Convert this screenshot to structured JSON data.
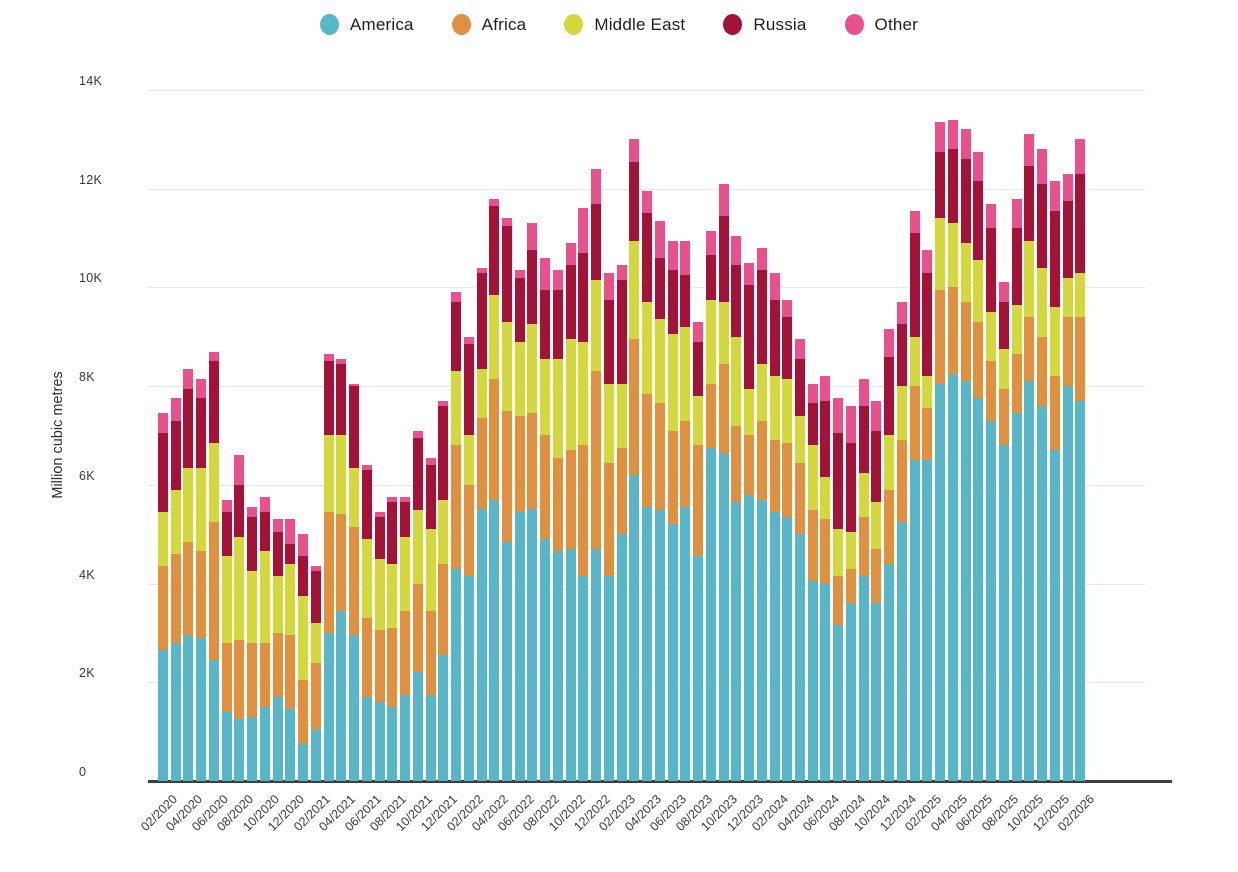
{
  "legend": [
    {
      "label": "America",
      "color": "#57b7c9"
    },
    {
      "label": "Africa",
      "color": "#e0913f"
    },
    {
      "label": "Middle East",
      "color": "#d3d93c"
    },
    {
      "label": "Russia",
      "color": "#a41238"
    },
    {
      "label": "Other",
      "color": "#e9518d"
    }
  ],
  "y_axis": {
    "title": "Million cubic metres",
    "ticks": [
      "0",
      "2K",
      "4K",
      "6K",
      "8K",
      "10K",
      "12K",
      "14K"
    ]
  },
  "chart_data": {
    "type": "bar",
    "stacked": true,
    "title": "",
    "xlabel": "",
    "ylabel": "Million cubic metres",
    "ylim": [
      0,
      14000
    ],
    "grid": true,
    "legend_position": "top",
    "categories": [
      "02/2020",
      "03/2020",
      "04/2020",
      "05/2020",
      "06/2020",
      "07/2020",
      "08/2020",
      "09/2020",
      "10/2020",
      "11/2020",
      "12/2020",
      "01/2021",
      "02/2021",
      "03/2021",
      "04/2021",
      "05/2021",
      "06/2021",
      "07/2021",
      "08/2021",
      "09/2021",
      "10/2021",
      "11/2021",
      "12/2021",
      "01/2022",
      "02/2022",
      "03/2022",
      "04/2022",
      "05/2022",
      "06/2022",
      "07/2022",
      "08/2022",
      "09/2022",
      "10/2022",
      "11/2022",
      "12/2022",
      "01/2023",
      "02/2023",
      "03/2023",
      "04/2023",
      "05/2023",
      "06/2023",
      "07/2023",
      "08/2023",
      "09/2023",
      "10/2023",
      "11/2023",
      "12/2023",
      "01/2024",
      "02/2024",
      "03/2024",
      "04/2024",
      "05/2024",
      "06/2024",
      "07/2024",
      "08/2024",
      "09/2024",
      "10/2024",
      "11/2024",
      "12/2024",
      "01/2025",
      "02/2025",
      "03/2025",
      "04/2025",
      "05/2025",
      "06/2025",
      "07/2025",
      "08/2025",
      "09/2025",
      "10/2025",
      "11/2025",
      "12/2025",
      "01/2026",
      "02/2026"
    ],
    "tick_every": 2,
    "series": [
      {
        "name": "America",
        "color": "#57b7c9",
        "values": [
          2650,
          2800,
          2950,
          2900,
          2450,
          1400,
          1250,
          1300,
          1500,
          1700,
          1450,
          750,
          1050,
          3000,
          3450,
          2950,
          1700,
          1600,
          1500,
          1750,
          2200,
          1750,
          2550,
          4300,
          4150,
          5500,
          5700,
          4850,
          5450,
          5500,
          4900,
          4650,
          4700,
          4150,
          4700,
          4150,
          5000,
          6200,
          5550,
          5500,
          5200,
          5550,
          4550,
          6750,
          6650,
          5650,
          5800,
          5700,
          5450,
          5350,
          5000,
          4050,
          4000,
          3150,
          3600,
          4150,
          3600,
          4400,
          5250,
          6500,
          6500,
          8050,
          8250,
          8100,
          7750,
          7300,
          6800,
          7450,
          8100,
          7600,
          6700,
          8000,
          7700
        ]
      },
      {
        "name": "Africa",
        "color": "#e0913f",
        "values": [
          1700,
          1800,
          1900,
          1750,
          2800,
          1400,
          1600,
          1500,
          1300,
          1300,
          1500,
          1300,
          1350,
          2450,
          1950,
          2200,
          1600,
          1450,
          1600,
          1700,
          1800,
          1700,
          1850,
          2500,
          1850,
          1850,
          2450,
          2650,
          1950,
          1950,
          2100,
          1900,
          2000,
          2650,
          3600,
          2300,
          1750,
          2750,
          2300,
          2150,
          1900,
          1750,
          2250,
          1300,
          1800,
          1550,
          1200,
          1600,
          1450,
          1500,
          1450,
          1450,
          1300,
          1000,
          700,
          1200,
          1100,
          1500,
          1650,
          1500,
          1050,
          1900,
          1750,
          1600,
          1550,
          1200,
          1150,
          1200,
          1300,
          1400,
          1500,
          1400,
          1700
        ]
      },
      {
        "name": "Middle East",
        "color": "#d3d93c",
        "values": [
          1100,
          1300,
          1500,
          1700,
          1600,
          1750,
          2100,
          1450,
          1850,
          1150,
          1450,
          1700,
          800,
          1550,
          1600,
          1200,
          1600,
          1450,
          1300,
          1500,
          1500,
          1650,
          1300,
          1500,
          1000,
          1000,
          1700,
          1800,
          1500,
          1800,
          1550,
          2000,
          2250,
          2100,
          1850,
          1600,
          1300,
          2000,
          1850,
          1700,
          1950,
          1900,
          1000,
          1700,
          1250,
          1800,
          950,
          1150,
          1300,
          1300,
          950,
          1300,
          850,
          950,
          750,
          900,
          950,
          1100,
          1100,
          1000,
          650,
          1450,
          1300,
          1200,
          1250,
          1000,
          800,
          1000,
          1550,
          1400,
          1400,
          800,
          900
        ]
      },
      {
        "name": "Russia",
        "color": "#a41238",
        "values": [
          1600,
          1400,
          1600,
          1400,
          1650,
          900,
          1050,
          1100,
          800,
          900,
          400,
          800,
          1050,
          1500,
          1450,
          1650,
          1400,
          850,
          1250,
          700,
          1450,
          1300,
          1900,
          1400,
          1850,
          1950,
          1800,
          1950,
          1300,
          1500,
          1400,
          1400,
          1500,
          1800,
          1550,
          1700,
          2100,
          1600,
          1800,
          1250,
          1300,
          1050,
          1100,
          900,
          1750,
          1450,
          2100,
          1900,
          1550,
          1250,
          1150,
          850,
          1550,
          1950,
          1800,
          1350,
          1450,
          1600,
          1250,
          2100,
          2100,
          1350,
          1500,
          1700,
          1600,
          1700,
          950,
          1550,
          1500,
          1700,
          1950,
          1550,
          2000
        ]
      },
      {
        "name": "Other",
        "color": "#e9518d",
        "values": [
          400,
          450,
          400,
          400,
          200,
          250,
          600,
          200,
          300,
          250,
          500,
          450,
          100,
          150,
          100,
          50,
          100,
          100,
          100,
          100,
          150,
          150,
          100,
          200,
          150,
          100,
          150,
          150,
          150,
          550,
          650,
          400,
          450,
          900,
          700,
          550,
          300,
          450,
          450,
          750,
          600,
          700,
          400,
          500,
          650,
          600,
          450,
          450,
          550,
          350,
          400,
          400,
          500,
          700,
          750,
          550,
          600,
          550,
          450,
          450,
          450,
          600,
          600,
          600,
          600,
          500,
          400,
          600,
          650,
          700,
          600,
          550,
          700
        ]
      }
    ]
  }
}
